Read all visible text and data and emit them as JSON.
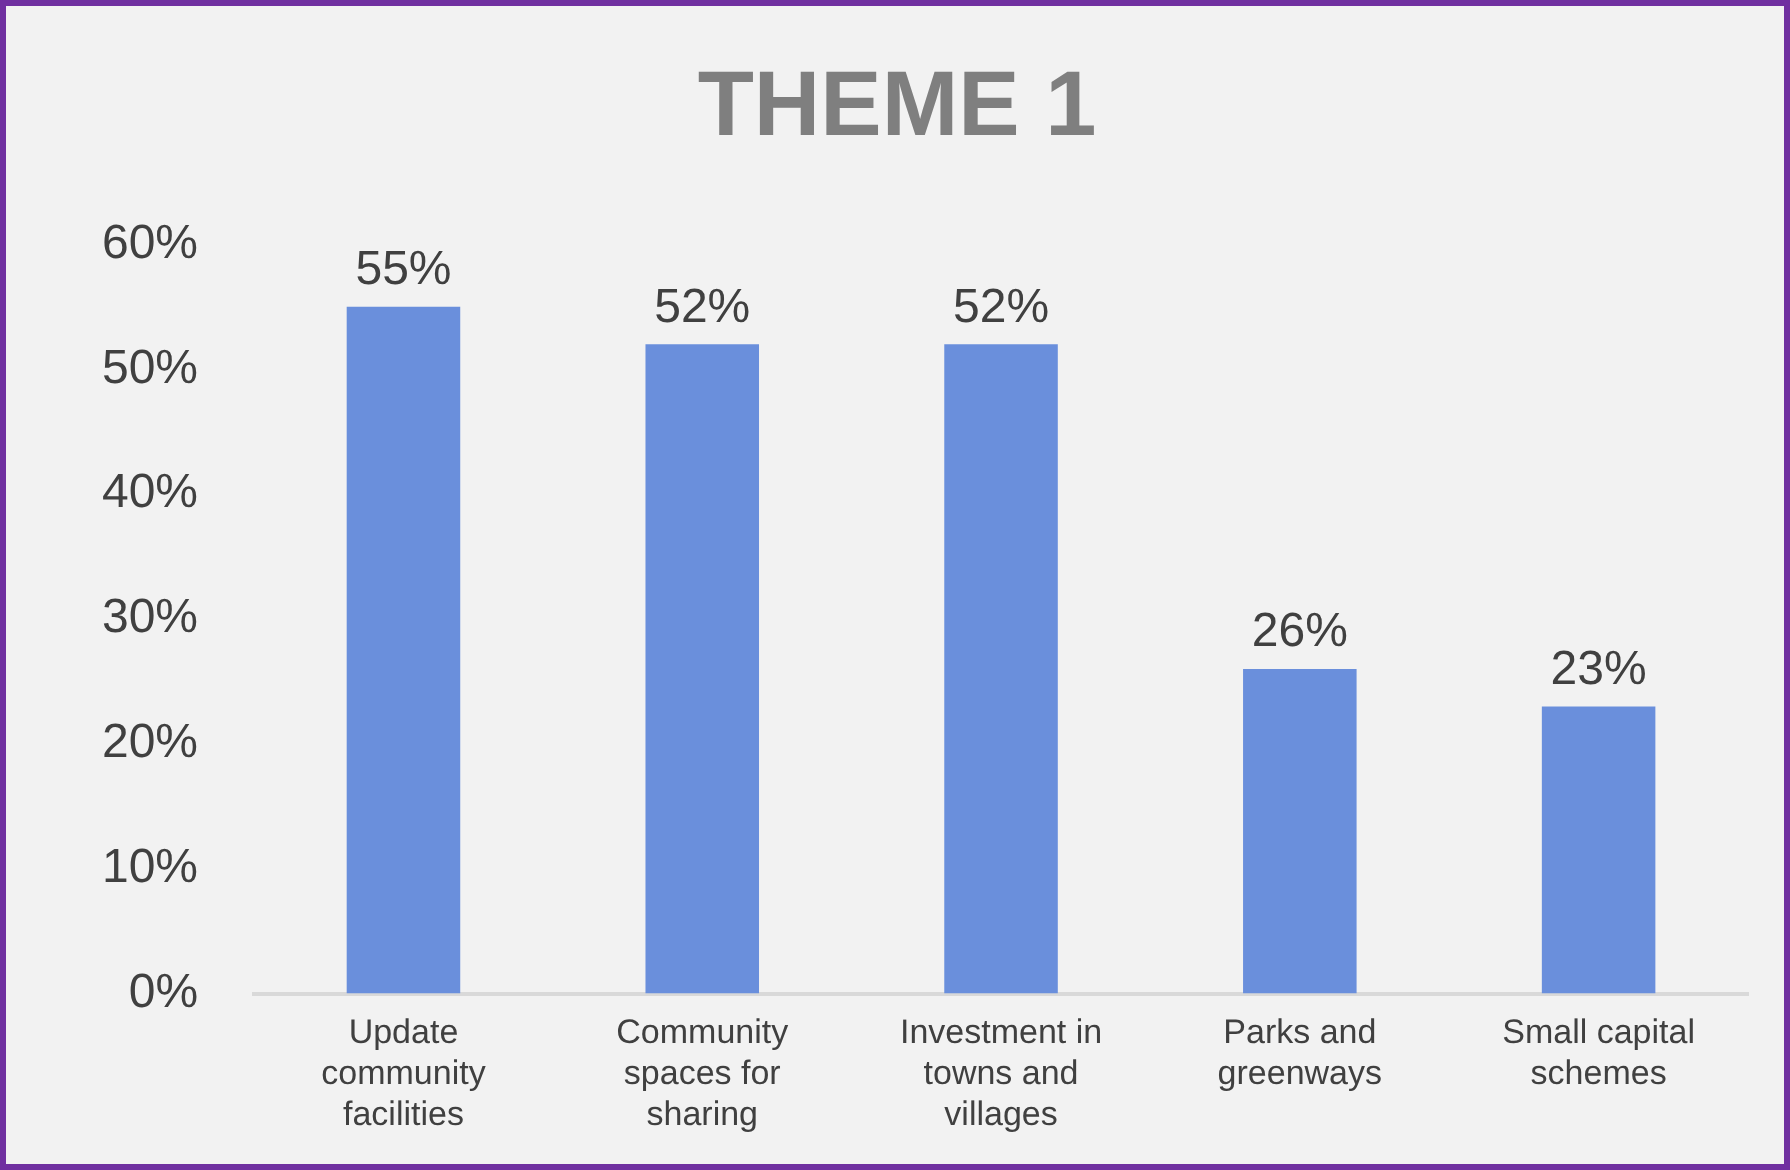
{
  "chart_data": {
    "type": "bar",
    "title": "THEME 1",
    "categories": [
      "Update community facilities",
      "Community spaces for sharing",
      "Investment in towns and villages",
      "Parks and greenways",
      "Small capital schemes"
    ],
    "values": [
      55,
      52,
      52,
      26,
      23
    ],
    "value_labels": [
      "55%",
      "52%",
      "52%",
      "26%",
      "23%"
    ],
    "color": "#6a8fdc",
    "ylim": [
      0,
      60
    ],
    "yticks": [
      {
        "value": 0,
        "label": "0%"
      },
      {
        "value": 10,
        "label": "10%"
      },
      {
        "value": 20,
        "label": "20%"
      },
      {
        "value": 30,
        "label": "30%"
      },
      {
        "value": 40,
        "label": "40%"
      },
      {
        "value": 50,
        "label": "50%"
      },
      {
        "value": 60,
        "label": "60%"
      }
    ],
    "grid": false,
    "legend": false
  }
}
